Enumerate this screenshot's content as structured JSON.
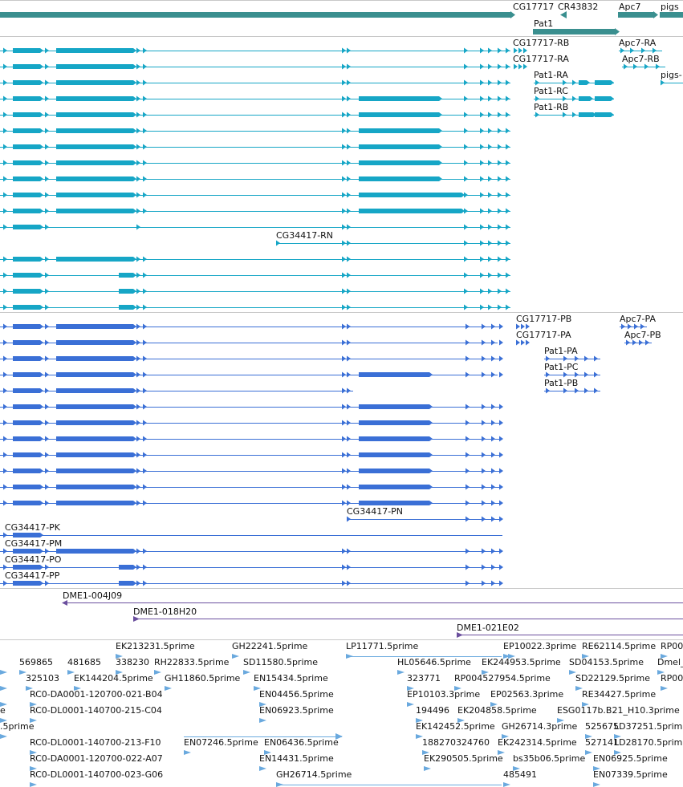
{
  "colors": {
    "gene": "#3a8f8f",
    "transcript": "#16a6c6",
    "cds": "#3a6fd6",
    "clone": "#6b4f9e",
    "est": "#6aa9de",
    "divider": "#c8c8c8"
  },
  "gene_track": {
    "genes": [
      {
        "label": "CG17717"
      },
      {
        "label": "CR43832"
      },
      {
        "label": "Apc7"
      },
      {
        "label": "pigs"
      },
      {
        "label": "Pat1"
      }
    ]
  },
  "transcript_track": {
    "labels": [
      {
        "text": "CG17717-RB"
      },
      {
        "text": "CG17717-RA"
      },
      {
        "text": "Apc7-RA"
      },
      {
        "text": "Apc7-RB"
      },
      {
        "text": "Pat1-RA"
      },
      {
        "text": "Pat1-RC"
      },
      {
        "text": "Pat1-RB"
      },
      {
        "text": "pigs-"
      },
      {
        "text": "CG34417-RN"
      }
    ]
  },
  "cds_track": {
    "labels": [
      {
        "text": "CG17717-PB"
      },
      {
        "text": "CG17717-PA"
      },
      {
        "text": "Apc7-PA"
      },
      {
        "text": "Apc7-PB"
      },
      {
        "text": "Pat1-PA"
      },
      {
        "text": "Pat1-PC"
      },
      {
        "text": "Pat1-PB"
      },
      {
        "text": "CG34417-PN"
      },
      {
        "text": "CG34417-PK"
      },
      {
        "text": "CG34417-PM"
      },
      {
        "text": "CG34417-PO"
      },
      {
        "text": "CG34417-PP"
      }
    ]
  },
  "clone_track": {
    "clones": [
      {
        "label": "DME1-004J09"
      },
      {
        "label": "DME1-018H20"
      },
      {
        "label": "DME1-021E02"
      }
    ]
  },
  "est_track": {
    "labels": [
      {
        "text": "EK213231.5prime"
      },
      {
        "text": "GH22241.5prime"
      },
      {
        "text": "LP11771.5prime"
      },
      {
        "text": "EP10022.3prime"
      },
      {
        "text": "RE62114.5prime"
      },
      {
        "text": "RP00"
      },
      {
        "text": "569865"
      },
      {
        "text": "481685"
      },
      {
        "text": "338230"
      },
      {
        "text": "RH22833.5prime"
      },
      {
        "text": "SD11580.5prime"
      },
      {
        "text": "HL05646.5prime"
      },
      {
        "text": "EK244953.5prime"
      },
      {
        "text": "SD04153.5prime"
      },
      {
        "text": "Dmel_c"
      },
      {
        "text": "325103"
      },
      {
        "text": "EK144204.5prime"
      },
      {
        "text": "GH11860.5prime"
      },
      {
        "text": "EN15434.5prime"
      },
      {
        "text": "323771"
      },
      {
        "text": "RP004527954.5prime"
      },
      {
        "text": "SD22129.5prime"
      },
      {
        "text": "RP00"
      },
      {
        "text": "RC0-DA0001-120700-021-B04"
      },
      {
        "text": "EN04456.5prime"
      },
      {
        "text": "EP10103.3prime"
      },
      {
        "text": "EP02563.3prime"
      },
      {
        "text": "RE34427.5prime"
      },
      {
        "text": "e"
      },
      {
        "text": "RC0-DL0001-140700-215-C04"
      },
      {
        "text": "EN06923.5prime"
      },
      {
        "text": "194496"
      },
      {
        "text": "EK204858.5prime"
      },
      {
        "text": "ESG0117b.B21_H10.3prime"
      },
      {
        "text": ".5prime"
      },
      {
        "text": "EK142452.5prime"
      },
      {
        "text": "GH26714.3prime"
      },
      {
        "text": "525675"
      },
      {
        "text": "LD37251.5prime"
      },
      {
        "text": "RC0-DL0001-140700-213-F10"
      },
      {
        "text": "EN07246.5prime"
      },
      {
        "text": "EN06436.5prime"
      },
      {
        "text": "188270324760"
      },
      {
        "text": "EK242314.5prime"
      },
      {
        "text": "527141"
      },
      {
        "text": "LD28170.5prime"
      },
      {
        "text": "RC0-DA0001-120700-022-A07"
      },
      {
        "text": "EN14431.5prime"
      },
      {
        "text": "EK290505.5prime"
      },
      {
        "text": "bs35b06.5prime"
      },
      {
        "text": "EN06925.5prime"
      },
      {
        "text": "RC0-DL0001-140700-023-G06"
      },
      {
        "text": "GH26714.5prime"
      },
      {
        "text": "485491"
      },
      {
        "text": "EN07339.5prime"
      }
    ]
  }
}
